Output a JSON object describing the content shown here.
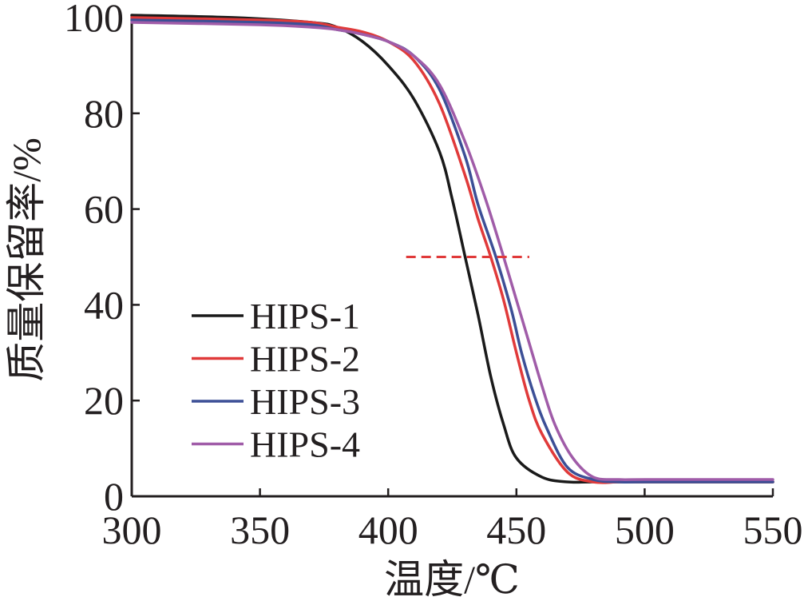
{
  "chart_data": {
    "type": "line",
    "xlabel": "温度/℃",
    "ylabel": "质量保留率/%",
    "xlim": [
      300,
      550
    ],
    "ylim": [
      0,
      100
    ],
    "xticks": [
      "300",
      "350",
      "400",
      "450",
      "500",
      "550"
    ],
    "yticks": [
      "0",
      "20",
      "40",
      "60",
      "80",
      "100"
    ],
    "legend_position": "lower-left",
    "series": [
      {
        "name": "HIPS-1",
        "color": "#1a1a1a",
        "points": [
          [
            300,
            100.5
          ],
          [
            340,
            100
          ],
          [
            370,
            99
          ],
          [
            380,
            98
          ],
          [
            390,
            95
          ],
          [
            400,
            90
          ],
          [
            410,
            83
          ],
          [
            420,
            72
          ],
          [
            425,
            62
          ],
          [
            430,
            50
          ],
          [
            435,
            38
          ],
          [
            440,
            25
          ],
          [
            445,
            15
          ],
          [
            450,
            8
          ],
          [
            460,
            4
          ],
          [
            470,
            3
          ],
          [
            480,
            3
          ],
          [
            500,
            3
          ],
          [
            550,
            3
          ]
        ]
      },
      {
        "name": "HIPS-2",
        "color": "#e03a3a",
        "points": [
          [
            300,
            100
          ],
          [
            350,
            99.5
          ],
          [
            370,
            99
          ],
          [
            380,
            98
          ],
          [
            390,
            97
          ],
          [
            400,
            95
          ],
          [
            410,
            91
          ],
          [
            420,
            82
          ],
          [
            430,
            67
          ],
          [
            435,
            58
          ],
          [
            440,
            50
          ],
          [
            445,
            41
          ],
          [
            450,
            30
          ],
          [
            455,
            20
          ],
          [
            460,
            13
          ],
          [
            470,
            5
          ],
          [
            480,
            3
          ],
          [
            490,
            3
          ],
          [
            500,
            3
          ],
          [
            550,
            3
          ]
        ]
      },
      {
        "name": "HIPS-3",
        "color": "#3c4f96",
        "points": [
          [
            300,
            99.5
          ],
          [
            350,
            99
          ],
          [
            370,
            98.5
          ],
          [
            380,
            97.5
          ],
          [
            390,
            96.5
          ],
          [
            400,
            95
          ],
          [
            410,
            92
          ],
          [
            420,
            85
          ],
          [
            430,
            71
          ],
          [
            435,
            61
          ],
          [
            442,
            50
          ],
          [
            448,
            39
          ],
          [
            452,
            30
          ],
          [
            457,
            21
          ],
          [
            462,
            14
          ],
          [
            470,
            6
          ],
          [
            480,
            3.5
          ],
          [
            490,
            3
          ],
          [
            500,
            3
          ],
          [
            550,
            3
          ]
        ]
      },
      {
        "name": "HIPS-4",
        "color": "#a05ca8",
        "points": [
          [
            300,
            99
          ],
          [
            350,
            98.5
          ],
          [
            370,
            98
          ],
          [
            380,
            97.5
          ],
          [
            390,
            96.5
          ],
          [
            400,
            95
          ],
          [
            410,
            92
          ],
          [
            420,
            86
          ],
          [
            430,
            74
          ],
          [
            438,
            62
          ],
          [
            445,
            50
          ],
          [
            450,
            41
          ],
          [
            455,
            32
          ],
          [
            460,
            23
          ],
          [
            465,
            15
          ],
          [
            472,
            8
          ],
          [
            480,
            4
          ],
          [
            490,
            3.5
          ],
          [
            500,
            3.5
          ],
          [
            550,
            3.5
          ]
        ]
      }
    ],
    "reference_line": {
      "y": 50,
      "x_range": [
        407,
        455
      ],
      "color": "#e03a3a",
      "style": "dashed"
    }
  }
}
